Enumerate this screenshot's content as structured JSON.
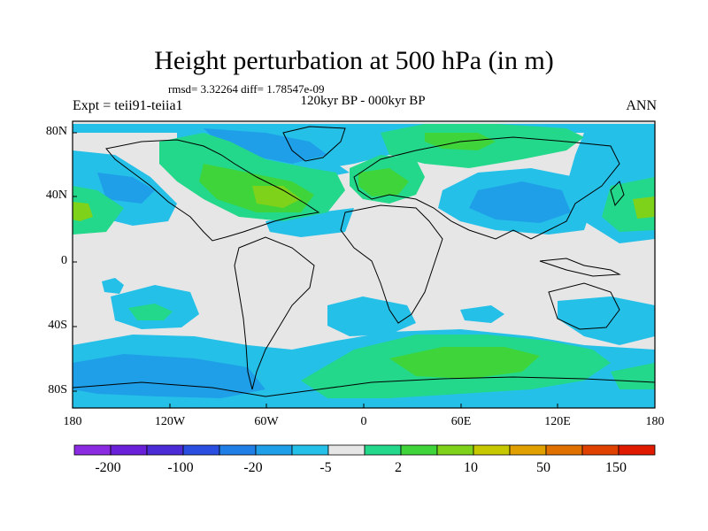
{
  "title": "Height perturbation at 500 hPa (in m)",
  "stats": "rmsd= 3.32264 diff= 1.78547e-09",
  "subtitle": "120kyr BP - 000kyr BP",
  "experiment": "Expt = teii91-teiia1",
  "season": "ANN",
  "lat_labels": [
    "80N",
    "40N",
    "0",
    "40S",
    "80S"
  ],
  "lon_labels": [
    "180",
    "120W",
    "60W",
    "0",
    "60E",
    "120E",
    "180"
  ],
  "colorbar": {
    "colors": [
      "#8a2be2",
      "#6a1fd8",
      "#4b2bd6",
      "#2a4fe0",
      "#1f7fe6",
      "#1f9fe8",
      "#24c0e8",
      "#e6e6e6",
      "#23d88a",
      "#3fd43a",
      "#7fd21a",
      "#c8c800",
      "#e0a000",
      "#e07000",
      "#e04000",
      "#e01a00"
    ],
    "labels": [
      "-200",
      "-100",
      "-20",
      "-5",
      "2",
      "10",
      "50",
      "150"
    ]
  },
  "field_colors": {
    "neutral": "#e6e6e6",
    "light_blue": "#24c0e8",
    "blue": "#1f9fe8",
    "deep_blue": "#1f7fe6",
    "green": "#23d88a",
    "bright_green": "#3fd43a",
    "yellow_green": "#7fd21a"
  }
}
